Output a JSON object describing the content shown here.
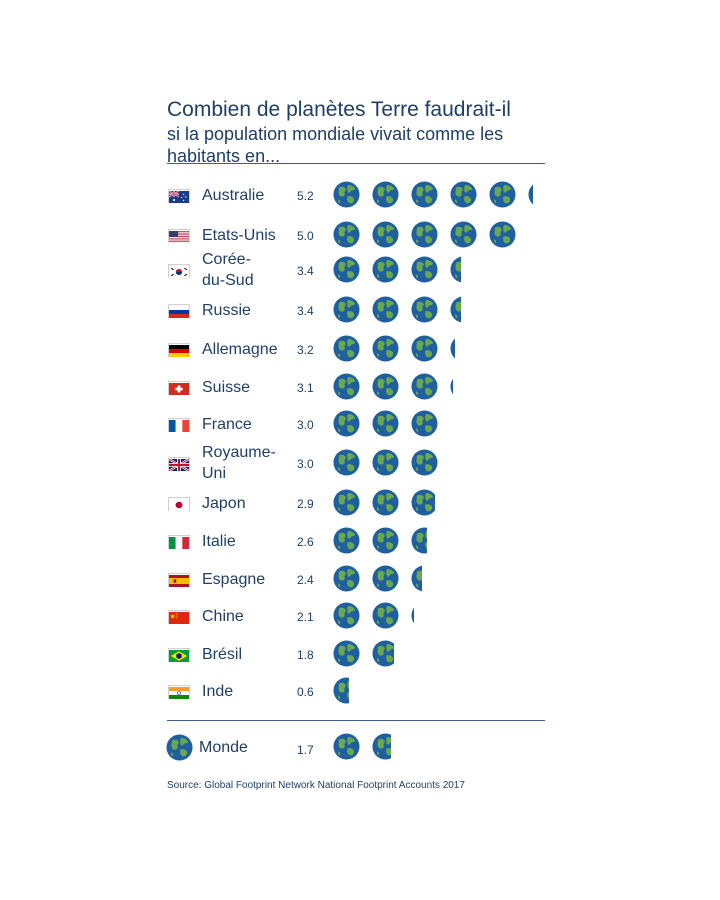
{
  "title": {
    "line1": "Combien de planètes Terre faudrait-il",
    "line2": "si la population mondiale vivait comme les",
    "line3": "habitants en..."
  },
  "chart_data": {
    "type": "bar",
    "unit_icon": "earth-globe",
    "categories": [
      "Australie",
      "Etats-Unis",
      "Corée-du-Sud",
      "Russie",
      "Allemagne",
      "Suisse",
      "France",
      "Royaume-Uni",
      "Japon",
      "Italie",
      "Espagne",
      "Chine",
      "Brésil",
      "Inde"
    ],
    "values": [
      5.2,
      5.0,
      3.4,
      3.4,
      3.2,
      3.1,
      3.0,
      3.0,
      2.9,
      2.6,
      2.4,
      2.1,
      1.8,
      0.6
    ],
    "value_labels": [
      "5.2",
      "5.0",
      "3.4",
      "3.4",
      "3.2",
      "3.1",
      "3.0",
      "3.0",
      "2.9",
      "2.6",
      "2.4",
      "2.1",
      "1.8",
      "0.6"
    ],
    "label_lines": [
      [
        "Australie"
      ],
      [
        "Etats-Unis"
      ],
      [
        "Corée-",
        "du-Sud"
      ],
      [
        "Russie"
      ],
      [
        "Allemagne"
      ],
      [
        "Suisse"
      ],
      [
        "France"
      ],
      [
        "Royaume-",
        "Uni"
      ],
      [
        "Japon"
      ],
      [
        "Italie"
      ],
      [
        "Espagne"
      ],
      [
        "Chine"
      ],
      [
        "Brésil"
      ],
      [
        "Inde"
      ]
    ],
    "flags": [
      "australia",
      "usa",
      "south-korea",
      "russia",
      "germany",
      "switzerland",
      "france",
      "uk",
      "japan",
      "italy",
      "spain",
      "china",
      "brazil",
      "india"
    ],
    "world": {
      "label": "Monde",
      "value": 1.7,
      "value_label": "1.7"
    },
    "colors": {
      "ocean": "#1f5fa0",
      "land": "#6aa84f",
      "text": "#1f3f66",
      "rule": "#3b5f8a"
    }
  },
  "source": "Source: Global Footprint Network National Footprint Accounts 2017"
}
